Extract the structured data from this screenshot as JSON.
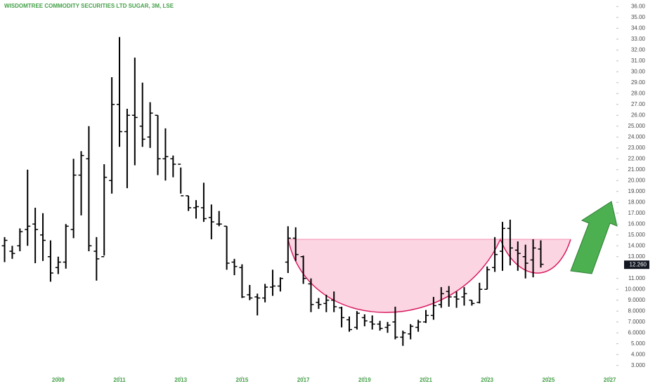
{
  "chart_data": {
    "type": "ohlc",
    "title": "WISDOMTREE COMMODITY SECURITIES LTD SUGAR, 3M, LSE",
    "x": [
      2007.25,
      2007.5,
      2007.75,
      2008,
      2008.25,
      2008.5,
      2008.75,
      2009,
      2009.25,
      2009.5,
      2009.75,
      2010,
      2010.25,
      2010.5,
      2010.75,
      2011,
      2011.25,
      2011.5,
      2011.75,
      2012,
      2012.25,
      2012.5,
      2012.75,
      2013,
      2013.25,
      2013.5,
      2013.75,
      2014,
      2014.25,
      2014.5,
      2014.75,
      2015,
      2015.25,
      2015.5,
      2015.75,
      2016,
      2016.25,
      2016.5,
      2016.75,
      2017,
      2017.25,
      2017.5,
      2017.75,
      2018,
      2018.25,
      2018.5,
      2018.75,
      2019,
      2019.25,
      2019.5,
      2019.75,
      2020,
      2020.25,
      2020.5,
      2020.75,
      2021,
      2021.25,
      2021.5,
      2021.75,
      2022,
      2022.25,
      2022.5,
      2022.75,
      2023,
      2023.25,
      2023.5,
      2023.75,
      2024,
      2024.25,
      2024.5,
      2024.75
    ],
    "open": [
      14,
      13.5,
      14,
      15.5,
      16,
      15,
      13,
      12,
      12.5,
      15.5,
      20.5,
      22,
      13.5,
      13,
      20,
      27,
      24.5,
      26,
      25,
      24,
      26,
      22,
      22,
      21.5,
      18.6,
      17.5,
      17.5,
      16.6,
      16,
      15.8,
      12.5,
      12,
      9.5,
      9.3,
      9.2,
      10.2,
      10.3,
      12.5,
      14.7,
      13,
      10.5,
      8.8,
      8.7,
      9,
      8.3,
      7.2,
      6.5,
      7.4,
      7,
      6.8,
      6.5,
      7,
      5.6,
      5.9,
      6.5,
      7,
      7.6,
      8.6,
      9.8,
      9.3,
      9.3,
      9,
      8.8,
      10,
      12,
      13.5,
      15.6,
      13.6,
      13,
      12.7,
      13.7
    ],
    "high": [
      14.8,
      14,
      15.6,
      21,
      17.5,
      17,
      14.5,
      13,
      16,
      22,
      22.7,
      25,
      14.8,
      21.5,
      29.5,
      33.2,
      26.6,
      31.3,
      29,
      27.2,
      26,
      24.8,
      22.3,
      21.2,
      18.6,
      18.2,
      19.8,
      17.8,
      17.2,
      15.8,
      12.8,
      12.3,
      10.4,
      9.6,
      10.5,
      11.8,
      11.1,
      15.8,
      15.7,
      13.1,
      11,
      9.2,
      9.5,
      9.8,
      8.4,
      7.5,
      8,
      7.7,
      7.6,
      7.1,
      7,
      8.4,
      6.2,
      6.8,
      7.2,
      8.1,
      9.3,
      10.2,
      10.3,
      9.8,
      10.2,
      9,
      10.6,
      12.1,
      14.8,
      16.2,
      16.4,
      14.4,
      14.1,
      14.6,
      14.5
    ],
    "low": [
      12.5,
      12.8,
      13.5,
      14,
      12.4,
      12.6,
      10.7,
      11.4,
      11.9,
      14.7,
      16.8,
      13.5,
      10.8,
      13.1,
      18.8,
      23.1,
      19.3,
      21.4,
      23.1,
      23,
      20.5,
      20,
      20.3,
      18.8,
      17.2,
      16.5,
      16.2,
      14.6,
      15.8,
      11.8,
      11.3,
      9.2,
      9,
      7.6,
      8.8,
      9.4,
      9.8,
      11.5,
      12.6,
      10.5,
      7.9,
      8.2,
      7.9,
      7.9,
      6.5,
      6.1,
      6.3,
      6.6,
      6.3,
      6.2,
      6,
      5.4,
      4.8,
      5.4,
      6.1,
      6.9,
      7.2,
      8.3,
      8.4,
      8.3,
      8.5,
      8.5,
      8.7,
      10,
      11.6,
      11.7,
      12.2,
      11.7,
      11,
      11.1,
      12
    ],
    "close": [
      14.5,
      13.3,
      15.3,
      15.8,
      15.5,
      14.5,
      11.5,
      12.5,
      15.8,
      20.5,
      22.3,
      14,
      12.8,
      20.3,
      27,
      24.5,
      26,
      25.8,
      23.8,
      26.2,
      22,
      22.2,
      21.5,
      18.6,
      17.5,
      17.6,
      16.5,
      16.2,
      16,
      12.4,
      12.1,
      9.3,
      9.2,
      9.2,
      10.2,
      10.3,
      11,
      14.7,
      13.2,
      11,
      8.6,
      8.6,
      9,
      8.4,
      7.4,
      6.3,
      7.8,
      7.1,
      6.8,
      6.4,
      6.7,
      5.6,
      6,
      6.6,
      7,
      7.6,
      8.5,
      9.6,
      9.3,
      9.1,
      9.6,
      8.7,
      10,
      11.8,
      13.2,
      15.6,
      13.8,
      13.3,
      12.4,
      13.8,
      12.3
    ],
    "color": "#000000",
    "last_price": {
      "value": 12.26,
      "label": "12.260"
    },
    "xlim": [
      2007.1,
      2027.17
    ],
    "xticks": [
      2009,
      2011,
      2013,
      2015,
      2017,
      2019,
      2021,
      2023,
      2025,
      2027
    ],
    "ylim": [
      2.4,
      36.6
    ],
    "yticks": [
      {
        "value": 36,
        "label": "36.00"
      },
      {
        "value": 35,
        "label": "35.00"
      },
      {
        "value": 34,
        "label": "34.00"
      },
      {
        "value": 33,
        "label": "33.00"
      },
      {
        "value": 32,
        "label": "32.00"
      },
      {
        "value": 31,
        "label": "31.00"
      },
      {
        "value": 30,
        "label": "30.00"
      },
      {
        "value": 29,
        "label": "29.00"
      },
      {
        "value": 28,
        "label": "28.00"
      },
      {
        "value": 27,
        "label": "27.00"
      },
      {
        "value": 26,
        "label": "26.00"
      },
      {
        "value": 25,
        "label": "25.000"
      },
      {
        "value": 24,
        "label": "24.000"
      },
      {
        "value": 23,
        "label": "23.000"
      },
      {
        "value": 22,
        "label": "22.000"
      },
      {
        "value": 21,
        "label": "21.000"
      },
      {
        "value": 20,
        "label": "20.000"
      },
      {
        "value": 19,
        "label": "19.000"
      },
      {
        "value": 18,
        "label": "18.000"
      },
      {
        "value": 17,
        "label": "17.000"
      },
      {
        "value": 16,
        "label": "16.000"
      },
      {
        "value": 15,
        "label": "15.000"
      },
      {
        "value": 14,
        "label": "14.000"
      },
      {
        "value": 13,
        "label": "13.000"
      },
      {
        "value": 11,
        "label": "11.000"
      },
      {
        "value": 10,
        "label": "10.0000"
      },
      {
        "value": 9,
        "label": "9.0000"
      },
      {
        "value": 8,
        "label": "8.0000"
      },
      {
        "value": 7,
        "label": "7.0000"
      },
      {
        "value": 6,
        "label": "6.0000"
      },
      {
        "value": 5,
        "label": "5.000"
      },
      {
        "value": 4,
        "label": "4.000"
      },
      {
        "value": 3,
        "label": "3.000"
      }
    ]
  }
}
